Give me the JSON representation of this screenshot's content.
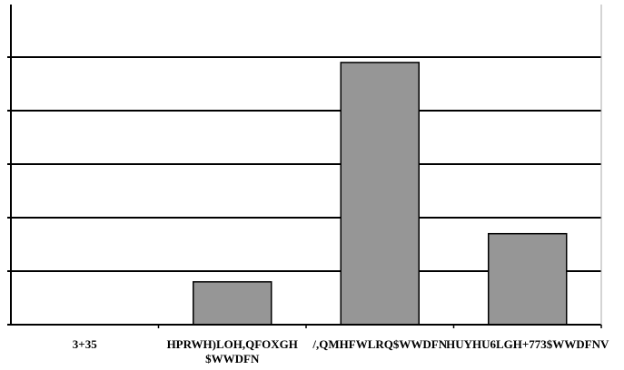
{
  "chart_data": {
    "type": "bar",
    "categories": [
      "3+35",
      "HPRWH)LOH,QFOXGH $WWDFN",
      "/,QMHFWLRQ$WWDFN",
      "HUYHU6LGH+773$WWDFNV"
    ],
    "category_lines": [
      [
        "3+35"
      ],
      [
        "HPRWH)LOH,QFOXGH",
        "$WWDFN"
      ],
      [
        "/,QMHFWLRQ$WWDFN"
      ],
      [
        "HUYHU6LGH+773$WWDFNV"
      ]
    ],
    "bars": [
      {
        "category": "HPRWH)LOH,QFOXGH $WWDFN",
        "value": 0.8
      },
      {
        "category": "/,QMHFWLRQ$WWDFN",
        "value": 4.9
      },
      {
        "category": "HUYHU6LGH+773$WWDFNV",
        "value": 1.7
      }
    ],
    "ylim": [
      0,
      6
    ],
    "y_major_step": 1,
    "grid": true,
    "title": "",
    "xlabel": "",
    "ylabel": "",
    "colors": {
      "bar_fill": "#969696",
      "bar_stroke": "#000000",
      "grid": "#000000",
      "axis": "#000000"
    }
  }
}
